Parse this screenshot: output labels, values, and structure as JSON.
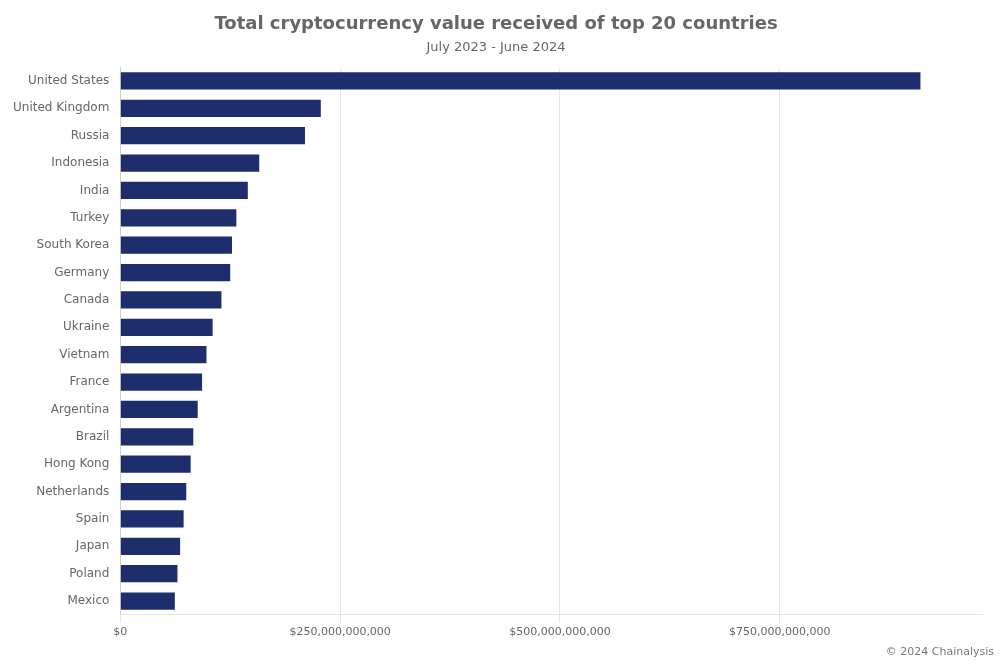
{
  "chart_data": {
    "type": "bar",
    "orientation": "horizontal",
    "title": "Total cryptocurrency value received of top 20 countries",
    "subtitle": "July 2023 - June 2024",
    "annotations": [
      "© 2024 Chainalysis"
    ],
    "categories": [
      "Mexico",
      "Poland",
      "Japan",
      "Spain",
      "Netherlands",
      "Hong Kong",
      "Brazil",
      "Argentina",
      "France",
      "Vietnam",
      "Ukraine",
      "Canada",
      "Germany",
      "South Korea",
      "Turkey",
      "India",
      "Indonesia",
      "Russia",
      "United Kingdom",
      "United States"
    ],
    "values": [
      62000000000,
      65000000000,
      68000000000,
      72000000000,
      75000000000,
      80000000000,
      83000000000,
      88000000000,
      93000000000,
      98000000000,
      105000000000,
      115000000000,
      125000000000,
      127000000000,
      132000000000,
      145000000000,
      158000000000,
      210000000000,
      228000000000,
      910000000000
    ],
    "color": "#1e2d6b",
    "xlim": [
      0,
      980000000000
    ],
    "xticks": [
      {
        "value": 0,
        "label": "$0"
      },
      {
        "value": 250000000000,
        "label": "$250,000,000,000"
      },
      {
        "value": 500000000000,
        "label": "$500,000,000,000"
      },
      {
        "value": 750000000000,
        "label": "$750,000,000,000"
      }
    ],
    "grid": true
  }
}
